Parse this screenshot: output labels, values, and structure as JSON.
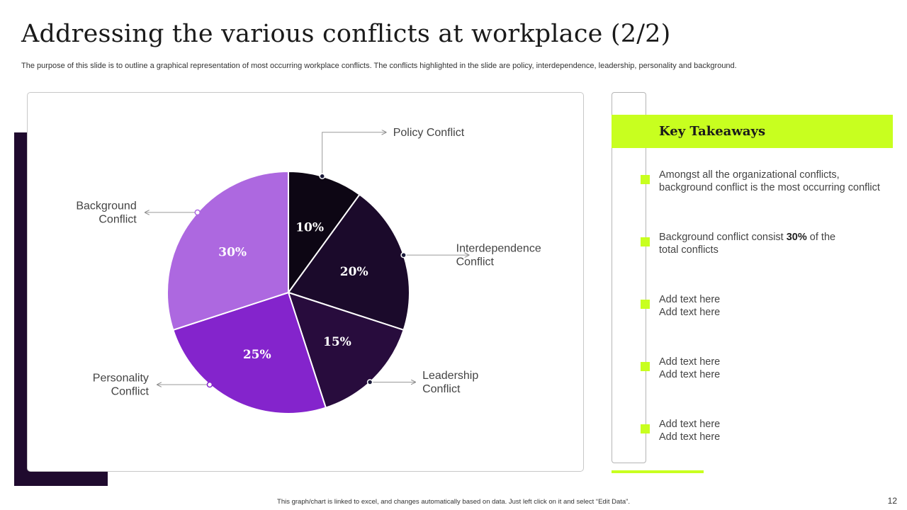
{
  "slide": {
    "title": "Addressing the various conflicts at workplace (2/2)",
    "subtitle": "The purpose of this slide is to outline a graphical representation of most occurring workplace conflicts. The conflicts highlighted in the slide are policy, interdependence, leadership, personality and background.",
    "footer": "This graph/chart is linked to excel, and changes automatically based on data. Just left click on it and select “Edit Data”.",
    "page_number": "12"
  },
  "chart_data": {
    "type": "pie",
    "title": "",
    "categories": [
      "Policy Conflict",
      "Interdependence Conflict",
      "Leadership Conflict",
      "Personality Conflict",
      "Background Conflict"
    ],
    "values": [
      10,
      20,
      15,
      25,
      30
    ],
    "value_labels": [
      "10%",
      "20%",
      "15%",
      "25%",
      "30%"
    ],
    "label_lines": [
      [
        "Policy Conflict"
      ],
      [
        "Interdependence",
        "Conflict"
      ],
      [
        "Leadership",
        "Conflict"
      ],
      [
        "Personality",
        "Conflict"
      ],
      [
        "Background",
        "Conflict"
      ]
    ],
    "colors": [
      "#0d0614",
      "#1b0a2b",
      "#280c3d",
      "#8424cc",
      "#ad68e0"
    ],
    "start": "12 o'clock, clockwise"
  },
  "takeaways": {
    "title": "Key Takeaways",
    "items": [
      {
        "parts": [
          {
            "t": "Amongst all the organizational conflicts, background conflict is the most occurring conflict",
            "b": false
          }
        ]
      },
      {
        "parts": [
          {
            "t": "Background conflict consist ",
            "b": false
          },
          {
            "t": "30%",
            "b": true
          },
          {
            "t": " of the total conflicts",
            "b": false
          }
        ]
      },
      {
        "parts": [
          {
            "t": "Add text here Add text here",
            "b": false
          }
        ]
      },
      {
        "parts": [
          {
            "t": "Add text here Add text here",
            "b": false
          }
        ]
      },
      {
        "parts": [
          {
            "t": "Add text here Add text here",
            "b": false
          }
        ]
      }
    ]
  },
  "colors": {
    "accent_green": "#c8ff1f",
    "accent_dark": "#1f0a2e"
  }
}
